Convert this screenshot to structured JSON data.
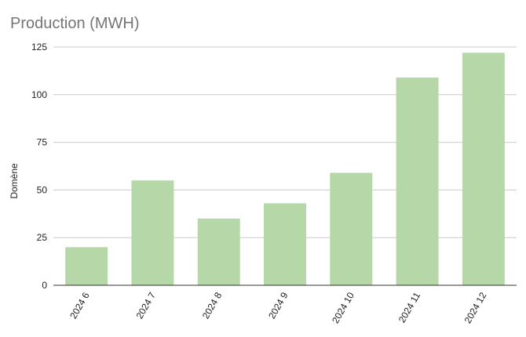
{
  "chart_data": {
    "type": "bar",
    "title": "Production (MWH)",
    "xlabel": "",
    "ylabel": "Domène",
    "categories": [
      "2024 6",
      "2024 7",
      "2024 8",
      "2024 9",
      "2024 10",
      "2024 11",
      "2024 12"
    ],
    "values": [
      20,
      55,
      35,
      43,
      59,
      109,
      122
    ],
    "ylim": [
      0,
      125
    ],
    "yticks": [
      0,
      25,
      50,
      75,
      100,
      125
    ],
    "grid": true,
    "legend": "none",
    "colors": {
      "bar": "#b6d7a8",
      "grid": "#cccccc",
      "axis": "#333333",
      "title": "#757575"
    }
  }
}
